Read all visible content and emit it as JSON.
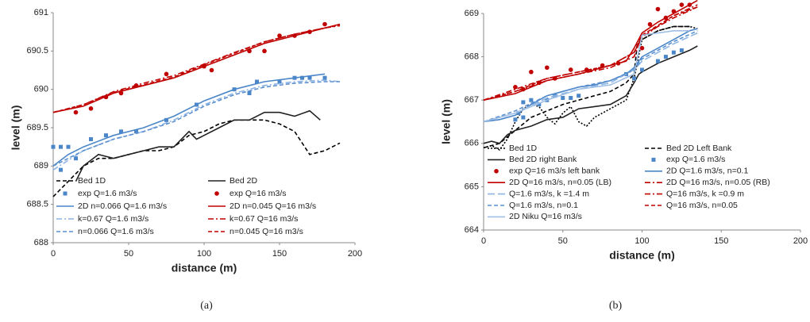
{
  "chart_data": [
    {
      "type": "line",
      "caption": "(a)",
      "x_label": "distance (m)",
      "y_label": "level (m)",
      "xlim": [
        0,
        200
      ],
      "xticks": [
        0,
        50,
        100,
        150,
        200
      ],
      "ylim": [
        688,
        691
      ],
      "yticks": [
        688,
        688.5,
        689,
        689.5,
        690,
        690.5,
        691
      ],
      "grid": false,
      "legend": "lower center",
      "series": [
        {
          "name": "Bed 1D",
          "color": "#000000",
          "dash": "dash",
          "marker": "none",
          "x": [
            0,
            10,
            20,
            30,
            40,
            50,
            60,
            70,
            80,
            90,
            100,
            110,
            120,
            130,
            140,
            150,
            160,
            170,
            180,
            190
          ],
          "values": [
            688.6,
            688.8,
            689.0,
            689.1,
            689.1,
            689.15,
            689.2,
            689.2,
            689.25,
            689.4,
            689.45,
            689.55,
            689.6,
            689.6,
            689.6,
            689.55,
            689.45,
            689.15,
            689.2,
            689.3
          ]
        },
        {
          "name": "Bed 2D",
          "color": "#222222",
          "dash": "solid",
          "marker": "none",
          "x": [
            15,
            20,
            30,
            40,
            50,
            60,
            70,
            80,
            90,
            95,
            100,
            110,
            120,
            130,
            140,
            150,
            160,
            170,
            177
          ],
          "values": [
            688.8,
            689.0,
            689.15,
            689.1,
            689.15,
            689.2,
            689.25,
            689.25,
            689.45,
            689.35,
            689.4,
            689.5,
            689.6,
            689.6,
            689.7,
            689.7,
            689.65,
            689.72,
            689.6
          ]
        },
        {
          "name": "exp Q=1.6 m3/s",
          "color": "#4a86c8",
          "dash": "none",
          "marker": "square",
          "x": [
            0,
            5,
            10,
            5,
            15,
            25,
            35,
            45,
            55,
            75,
            95,
            120,
            130,
            135,
            150,
            160,
            165,
            170,
            180
          ],
          "values": [
            689.25,
            689.25,
            689.25,
            688.95,
            689.1,
            689.35,
            689.4,
            689.45,
            689.45,
            689.6,
            689.8,
            690.0,
            689.95,
            690.1,
            690.1,
            690.15,
            690.15,
            690.15,
            690.15
          ]
        },
        {
          "name": "exp Q=16 m3/s",
          "color": "#c00000",
          "dash": "none",
          "marker": "circle",
          "x": [
            15,
            25,
            35,
            45,
            55,
            75,
            100,
            105,
            130,
            140,
            150,
            160,
            170,
            180
          ],
          "values": [
            689.7,
            689.75,
            689.9,
            689.95,
            690.05,
            690.2,
            690.3,
            690.25,
            690.5,
            690.5,
            690.7,
            690.7,
            690.75,
            690.85
          ]
        },
        {
          "name": "2D  n=0.066 Q=1.6 m3/s",
          "color": "#4a86c8",
          "dash": "solid",
          "marker": "none",
          "x": [
            0,
            10,
            20,
            40,
            60,
            80,
            100,
            120,
            140,
            160,
            180
          ],
          "values": [
            689.0,
            689.15,
            689.25,
            689.4,
            689.5,
            689.65,
            689.85,
            690.0,
            690.1,
            690.15,
            690.2
          ]
        },
        {
          "name": "2D  n=0.045 Q=16 m3/s",
          "color": "#c00000",
          "dash": "solid",
          "marker": "none",
          "x": [
            0,
            20,
            40,
            60,
            80,
            100,
            120,
            140,
            160,
            180,
            190
          ],
          "values": [
            689.7,
            689.78,
            689.95,
            690.05,
            690.15,
            690.3,
            690.45,
            690.6,
            690.7,
            690.8,
            690.85
          ]
        },
        {
          "name": "k=0.67 Q=1.6 m3/s",
          "color": "#8db4e2",
          "dash": "dashdot",
          "marker": "none",
          "x": [
            0,
            20,
            40,
            60,
            80,
            100,
            120,
            140,
            160,
            180,
            190
          ],
          "values": [
            688.95,
            689.2,
            689.35,
            689.45,
            689.6,
            689.8,
            689.95,
            690.05,
            690.1,
            690.12,
            690.1
          ]
        },
        {
          "name": "k=0.67 Q=16 m3/s",
          "color": "#c00000",
          "dash": "dashdot",
          "marker": "none",
          "x": [
            0,
            20,
            40,
            60,
            80,
            100,
            120,
            140,
            160,
            180,
            190
          ],
          "values": [
            689.7,
            689.8,
            689.97,
            690.08,
            690.18,
            690.33,
            690.48,
            690.62,
            690.72,
            690.8,
            690.83
          ]
        },
        {
          "name": "n=0.066 Q=1.6 m3/s",
          "color": "#5a8fd0",
          "dash": "dash",
          "marker": "none",
          "x": [
            0,
            20,
            40,
            60,
            80,
            100,
            120,
            140,
            160,
            180,
            190
          ],
          "values": [
            689.0,
            689.2,
            689.35,
            689.45,
            689.58,
            689.78,
            689.93,
            690.03,
            690.08,
            690.1,
            690.1
          ]
        },
        {
          "name": "n=0.045 Q=16 m3/s",
          "color": "#c00000",
          "dash": "dash",
          "marker": "none",
          "x": [
            0,
            20,
            40,
            60,
            80,
            100,
            120,
            140,
            160,
            180,
            190
          ],
          "values": [
            689.7,
            689.8,
            689.96,
            690.06,
            690.16,
            690.32,
            690.47,
            690.62,
            690.72,
            690.8,
            690.84
          ]
        }
      ]
    },
    {
      "type": "line",
      "caption": "(b)",
      "x_label": "distance (m)",
      "y_label": "level (m)",
      "xlim": [
        0,
        200
      ],
      "xticks": [
        0,
        50,
        100,
        150,
        200
      ],
      "ylim": [
        664,
        669
      ],
      "yticks": [
        664,
        665,
        666,
        667,
        668,
        669
      ],
      "grid": false,
      "legend": "lower center",
      "series": [
        {
          "name": "Bed 1D",
          "color": "#000000",
          "dash": "dot",
          "marker": "none",
          "x": [
            0,
            5,
            10,
            15,
            20,
            25,
            30,
            35,
            40,
            45,
            50,
            55,
            60,
            65,
            70,
            80,
            90,
            95,
            100,
            110,
            120,
            130,
            135
          ],
          "values": [
            665.9,
            665.95,
            665.85,
            666.1,
            666.5,
            666.8,
            666.9,
            666.85,
            666.6,
            666.45,
            666.7,
            666.85,
            666.5,
            666.4,
            666.6,
            666.8,
            667.0,
            667.5,
            668.4,
            668.6,
            668.7,
            668.7,
            668.65
          ]
        },
        {
          "name": "Bed 2D Left Bank",
          "color": "#000000",
          "dash": "dash",
          "marker": "none",
          "x": [
            0,
            10,
            20,
            30,
            40,
            50,
            60,
            70,
            80,
            90,
            95,
            97,
            100,
            110,
            120,
            130
          ],
          "values": [
            665.9,
            666.0,
            666.3,
            666.6,
            666.75,
            666.9,
            667.0,
            667.1,
            667.2,
            667.4,
            667.6,
            668.3,
            668.4,
            668.6,
            668.7,
            668.7
          ]
        },
        {
          "name": "Bed 2D right Bank",
          "color": "#222222",
          "dash": "solid",
          "marker": "none",
          "x": [
            0,
            5,
            10,
            15,
            20,
            30,
            40,
            50,
            60,
            70,
            80,
            90,
            95,
            98,
            100,
            110,
            120,
            130,
            135
          ],
          "values": [
            666.0,
            666.05,
            666.0,
            666.2,
            666.3,
            666.4,
            666.55,
            666.6,
            666.8,
            666.85,
            666.9,
            667.1,
            667.4,
            667.6,
            667.65,
            667.85,
            668.0,
            668.15,
            668.25
          ]
        },
        {
          "name": "exp Q=1.6 m3/s",
          "color": "#4a86c8",
          "dash": "none",
          "marker": "square",
          "x": [
            20,
            22,
            25,
            25,
            30,
            35,
            40,
            45,
            50,
            55,
            60,
            90,
            95,
            100,
            110,
            115,
            120,
            125
          ],
          "values": [
            666.55,
            666.7,
            666.95,
            666.6,
            667.0,
            666.9,
            667.0,
            667.1,
            667.05,
            667.05,
            667.1,
            667.6,
            667.5,
            667.7,
            667.9,
            668.0,
            668.1,
            668.15
          ]
        },
        {
          "name": "exp Q=16 m3/s left bank",
          "color": "#c00000",
          "dash": "none",
          "marker": "circle",
          "x": [
            20,
            25,
            30,
            35,
            40,
            45,
            55,
            65,
            75,
            85,
            100,
            105,
            110,
            115,
            120,
            125,
            130
          ],
          "values": [
            667.3,
            667.25,
            667.65,
            667.4,
            667.75,
            667.5,
            667.7,
            667.7,
            667.8,
            667.85,
            668.2,
            668.75,
            669.1,
            668.9,
            669.05,
            669.2,
            669.2
          ]
        },
        {
          "name": "2D Q=1.6 m3/s, n=0.1",
          "color": "#4a86c8",
          "dash": "solid",
          "marker": "none",
          "x": [
            0,
            10,
            20,
            30,
            40,
            50,
            60,
            70,
            80,
            90,
            95,
            100,
            110,
            120,
            130,
            135
          ],
          "values": [
            666.5,
            666.55,
            666.65,
            666.9,
            667.1,
            667.2,
            667.3,
            667.35,
            667.45,
            667.6,
            667.75,
            668.0,
            668.2,
            668.4,
            668.6,
            668.65
          ]
        },
        {
          "name": "2D Q=16  m3/s, n=0.05 (LB)",
          "color": "#c00000",
          "dash": "solid",
          "marker": "none",
          "x": [
            0,
            20,
            40,
            60,
            80,
            90,
            95,
            100,
            110,
            120,
            130,
            135
          ],
          "values": [
            667.0,
            667.15,
            667.45,
            667.6,
            667.8,
            667.9,
            668.2,
            668.55,
            668.8,
            669.0,
            669.2,
            669.3
          ]
        },
        {
          "name": "2D Q=16  m3/s, n=0.05 (RB)",
          "color": "#c00000",
          "dash": "dashdot",
          "marker": "none",
          "x": [
            0,
            20,
            40,
            60,
            80,
            95,
            100,
            110,
            120,
            135
          ],
          "values": [
            667.0,
            667.2,
            667.45,
            667.6,
            667.75,
            668.0,
            668.5,
            668.7,
            668.9,
            669.15
          ]
        },
        {
          "name": "Q=1.6 m3/s, k =1.4 m",
          "color": "#8db4e2",
          "dash": "longdash",
          "marker": "none",
          "x": [
            0,
            20,
            40,
            60,
            80,
            95,
            100,
            120,
            135
          ],
          "values": [
            666.5,
            666.7,
            667.05,
            667.25,
            667.4,
            667.7,
            667.9,
            668.3,
            668.55
          ]
        },
        {
          "name": "Q=16 m3/s, k =0.9 m",
          "color": "#c00000",
          "dash": "dashdot",
          "marker": "none",
          "x": [
            0,
            20,
            40,
            60,
            80,
            95,
            100,
            120,
            135
          ],
          "values": [
            667.0,
            667.25,
            667.5,
            667.65,
            667.8,
            668.1,
            668.45,
            668.95,
            669.2
          ]
        },
        {
          "name": "Q=1.6 m3/s, n=0.1",
          "color": "#5a8fd0",
          "dash": "dash",
          "marker": "none",
          "x": [
            0,
            20,
            40,
            60,
            80,
            95,
            100,
            120,
            135
          ],
          "values": [
            666.5,
            666.75,
            667.1,
            667.3,
            667.45,
            667.7,
            667.95,
            668.35,
            668.6
          ]
        },
        {
          "name": "Q=16 m3/s, n=0.05",
          "color": "#c00000",
          "dash": "dash",
          "marker": "none",
          "x": [
            0,
            20,
            40,
            60,
            80,
            95,
            100,
            120,
            135
          ],
          "values": [
            667.0,
            667.2,
            667.5,
            667.65,
            667.8,
            668.1,
            668.5,
            668.95,
            669.15
          ]
        },
        {
          "name": "2D Niku Q=16 m3/s",
          "color": "#9fbfe6",
          "dash": "solid",
          "marker": "none",
          "x": [
            0,
            20,
            40,
            60,
            80,
            95,
            100,
            110,
            120,
            130
          ],
          "values": [
            666.5,
            666.7,
            667.0,
            667.25,
            667.35,
            667.6,
            668.5,
            668.55,
            668.6,
            668.6
          ]
        }
      ]
    }
  ]
}
